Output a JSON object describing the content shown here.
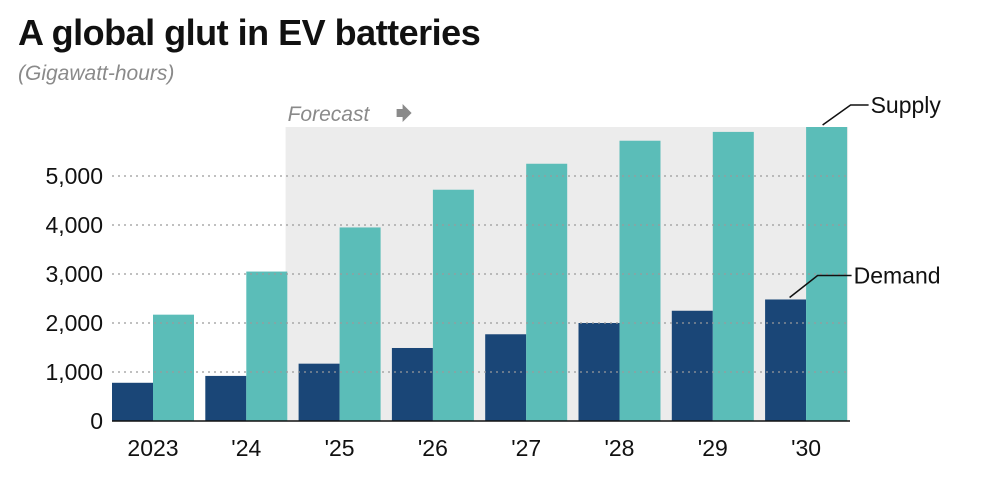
{
  "header": {
    "title": "A global glut in EV batteries",
    "subtitle": "(Gigawatt-hours)"
  },
  "chart_data": {
    "type": "bar",
    "title": "A global glut in EV batteries",
    "subtitle": "(Gigawatt-hours)",
    "xlabel": "",
    "ylabel": "",
    "categories": [
      "2023",
      "'24",
      "'25",
      "'26",
      "'27",
      "'28",
      "'29",
      "'30"
    ],
    "series": [
      {
        "name": "Demand",
        "values": [
          780,
          920,
          1170,
          1490,
          1770,
          2000,
          2250,
          2480
        ]
      },
      {
        "name": "Supply",
        "values": [
          2170,
          3050,
          3950,
          4720,
          5250,
          5720,
          5900,
          6000
        ]
      }
    ],
    "yticks": [
      0,
      1000,
      2000,
      3000,
      4000,
      5000
    ],
    "ytick_labels": [
      "0",
      "1,000",
      "2,000",
      "3,000",
      "4,000",
      "5,000"
    ],
    "ylim": [
      0,
      6000
    ],
    "grid": true,
    "forecast": {
      "label": "Forecast",
      "start_category": "'25"
    },
    "colors": {
      "Demand": "#1a4677",
      "Supply": "#5bbdb8",
      "forecast_band": "#ececec",
      "grid": "#9a9a9a"
    }
  }
}
